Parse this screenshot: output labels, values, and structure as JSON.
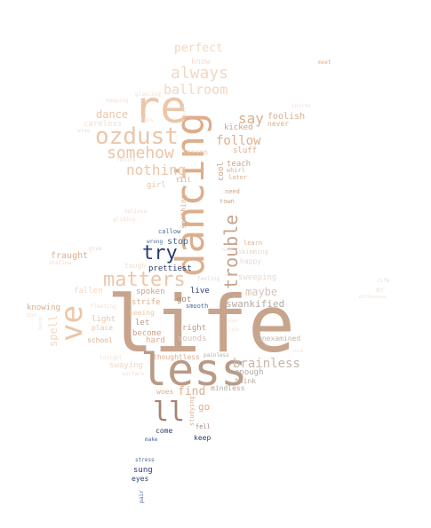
{
  "palette": {
    "tan": "#c8a48c",
    "taupe": "#b99a86",
    "peach": "#ebc6a8",
    "sand": "#dcae8c",
    "pale": "#f2d7c2",
    "faint": "#f4ddd0",
    "gray": "#b5aaa2",
    "navy": "#2a3d6b",
    "blue": "#4a6a9a",
    "brown": "#a88270"
  },
  "words": [
    {
      "text": "life",
      "color": "#c8a48c"
    },
    {
      "text": "dancing",
      "color": "#dcae8c"
    },
    {
      "text": "less",
      "color": "#b99a86"
    },
    {
      "text": "re",
      "color": "#ebc6a8"
    },
    {
      "text": "ve",
      "color": "#ebc6a8"
    },
    {
      "text": "ozdust",
      "color": "#ebc6a8"
    },
    {
      "text": "matters",
      "color": "#ebc6a8"
    },
    {
      "text": "ll",
      "color": "#a88270"
    },
    {
      "text": "trouble",
      "color": "#c8a48c"
    },
    {
      "text": "somehow",
      "color": "#ebc6a8"
    },
    {
      "text": "always",
      "color": "#f2d7c2"
    },
    {
      "text": "ballroom",
      "color": "#f2d7c2"
    },
    {
      "text": "try",
      "color": "#2a3d6b"
    },
    {
      "text": "nothing",
      "color": "#ebc6a8"
    },
    {
      "text": "brainless",
      "color": "#c8b4a8"
    },
    {
      "text": "perfect",
      "color": "#f2d7c2"
    },
    {
      "text": "follow",
      "color": "#dcae8c"
    },
    {
      "text": "say",
      "color": "#dcae8c"
    },
    {
      "text": "maybe",
      "color": "#d8c4b8"
    },
    {
      "text": "find",
      "color": "#dcae8c"
    },
    {
      "text": "dance",
      "color": "#ebc6a8"
    },
    {
      "text": "swankified",
      "color": "#b5aaa2"
    },
    {
      "text": "spell",
      "color": "#f2d7c2"
    },
    {
      "text": "foolish",
      "color": "#dcae8c"
    },
    {
      "text": "knowing",
      "color": "#dcae8c"
    },
    {
      "text": "fraught",
      "color": "#dcae8c"
    },
    {
      "text": "know",
      "color": "#f4ddd0"
    },
    {
      "text": "careless",
      "color": "#f4ddd0"
    },
    {
      "text": "girl",
      "color": "#ebc6a8"
    },
    {
      "text": "sweeping",
      "color": "#e8d8cc"
    },
    {
      "text": "go",
      "color": "#dcae8c"
    },
    {
      "text": "kicked",
      "color": "#c8a48c"
    },
    {
      "text": "sluff",
      "color": "#dcae8c"
    },
    {
      "text": "teach",
      "color": "#c8a48c"
    },
    {
      "text": "never",
      "color": "#dcae8c"
    },
    {
      "text": "cool",
      "color": "#c8a48c"
    },
    {
      "text": "whirl",
      "color": "#dcae8c"
    },
    {
      "text": "later",
      "color": "#dcae8c"
    },
    {
      "text": "need",
      "color": "#c8a48c"
    },
    {
      "text": "town",
      "color": "#c8a48c"
    },
    {
      "text": "lesson",
      "color": "#ebc6a8"
    },
    {
      "text": "till",
      "color": "#c8a48c"
    },
    {
      "text": "soothing",
      "color": "#dcae8c"
    },
    {
      "text": "stop",
      "color": "#4a6a9a"
    },
    {
      "text": "prettiest",
      "color": "#2a3d6b"
    },
    {
      "text": "callow",
      "color": "#4a6a9a"
    },
    {
      "text": "wrong",
      "color": "#4a6a9a"
    },
    {
      "text": "learn",
      "color": "#dcae8c"
    },
    {
      "text": "skimming",
      "color": "#e8d8cc"
    },
    {
      "text": "happy",
      "color": "#e8d8cc"
    },
    {
      "text": "live",
      "color": "#2a3d6b"
    },
    {
      "text": "smooth",
      "color": "#4a6a9a"
    },
    {
      "text": "got",
      "color": "#a88270"
    },
    {
      "text": "right",
      "color": "#b99a86"
    },
    {
      "text": "spoken",
      "color": "#c8a48c"
    },
    {
      "text": "strife",
      "color": "#dcae8c"
    },
    {
      "text": "seeing",
      "color": "#ebc6a8"
    },
    {
      "text": "let",
      "color": "#b99a86"
    },
    {
      "text": "become",
      "color": "#c8a48c"
    },
    {
      "text": "hard",
      "color": "#dcae8c"
    },
    {
      "text": "sounds",
      "color": "#d8c4b8"
    },
    {
      "text": "light",
      "color": "#ebc6a8"
    },
    {
      "text": "place",
      "color": "#ebc6a8"
    },
    {
      "text": "school",
      "color": "#dcae8c"
    },
    {
      "text": "swaying",
      "color": "#f2d7c2"
    },
    {
      "text": "fallen",
      "color": "#f2d7c2"
    },
    {
      "text": "fleeting",
      "color": "#f4ddd0"
    },
    {
      "text": "woes",
      "color": "#dcae8c"
    },
    {
      "text": "thoughtless",
      "color": "#dcae8c"
    },
    {
      "text": "painless",
      "color": "#b5aaa2"
    },
    {
      "text": "enough",
      "color": "#b5aaa2"
    },
    {
      "text": "think",
      "color": "#b5aaa2"
    },
    {
      "text": "mindless",
      "color": "#b5aaa2"
    },
    {
      "text": "unexamined",
      "color": "#c8b4a8"
    },
    {
      "text": "tough",
      "color": "#f4ddd0"
    },
    {
      "text": "studying",
      "color": "#dcae8c"
    },
    {
      "text": "fell",
      "color": "#a88270"
    },
    {
      "text": "come",
      "color": "#2a3d6b"
    },
    {
      "text": "keep",
      "color": "#2a3d6b"
    },
    {
      "text": "make",
      "color": "#4a6a9a"
    },
    {
      "text": "stress",
      "color": "#4a6a9a"
    },
    {
      "text": "sung",
      "color": "#2a3d6b"
    },
    {
      "text": "eyes",
      "color": "#2a3d6b"
    },
    {
      "text": "pair",
      "color": "#4a6a9a"
    },
    {
      "text": "meet",
      "color": "#dcae8c"
    },
    {
      "text": "invite",
      "color": "#f4ddd0"
    },
    {
      "text": "keeping",
      "color": "#f4ddd0"
    },
    {
      "text": "glancing",
      "color": "#f4ddd0"
    },
    {
      "text": "wise",
      "color": "#f4ddd0"
    },
    {
      "text": "fuss",
      "color": "#f4ddd0"
    },
    {
      "text": "turf",
      "color": "#f4ddd0"
    },
    {
      "text": "future",
      "color": "#f4ddd0"
    },
    {
      "text": "believe",
      "color": "#f4ddd0"
    },
    {
      "text": "gliding",
      "color": "#f4ddd0"
    },
    {
      "text": "give",
      "color": "#f2d7c2"
    },
    {
      "text": "shallow",
      "color": "#f4ddd0"
    },
    {
      "text": "feeling",
      "color": "#e8d8cc"
    },
    {
      "text": "tonight",
      "color": "#f4ddd0"
    },
    {
      "text": "surface",
      "color": "#f4ddd0"
    },
    {
      "text": "don",
      "color": "#f4ddd0"
    },
    {
      "text": "bound",
      "color": "#f4ddd0"
    },
    {
      "text": "difference",
      "color": "#f4ddd0"
    },
    {
      "text": "er",
      "color": "#f4ddd0"
    },
    {
      "text": "rife",
      "color": "#f4ddd0"
    },
    {
      "text": "soon",
      "color": "#f4ddd0"
    },
    {
      "text": "sure",
      "color": "#f4ddd0"
    },
    {
      "text": "life",
      "color": "#f4ddd0"
    },
    {
      "text": "hurt",
      "color": "#f4ddd0"
    }
  ]
}
